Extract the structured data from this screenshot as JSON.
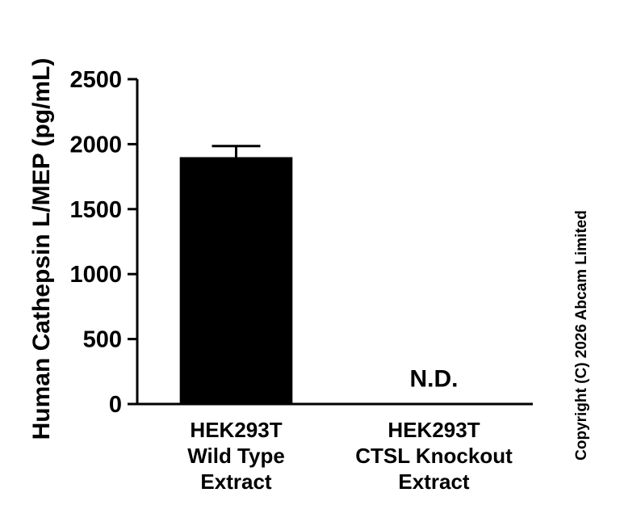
{
  "copyright": "Copyright (C) 2026 Abcam Limited",
  "chart_data": {
    "type": "bar",
    "title": "",
    "xlabel": "",
    "ylabel": "Human Cathepsin L/MEP (pg/mL)",
    "ylim": [
      0,
      2500
    ],
    "yticks": [
      0,
      500,
      1000,
      1500,
      2000,
      2500
    ],
    "categories": [
      "HEK293T\nWild Type\nExtract",
      "HEK293T\nCTSL Knockout\nExtract"
    ],
    "series": [
      {
        "name": "Human Cathepsin L/MEP (pg/mL)",
        "values": [
          1900,
          null
        ]
      }
    ],
    "errors": [
      85,
      null
    ],
    "annotations": [
      {
        "text": "N.D.",
        "category_index": 1,
        "y": 135
      }
    ],
    "bar_color": "#000000",
    "axis_color": "#000000",
    "background": "#ffffff",
    "grid": false,
    "legend": false
  }
}
